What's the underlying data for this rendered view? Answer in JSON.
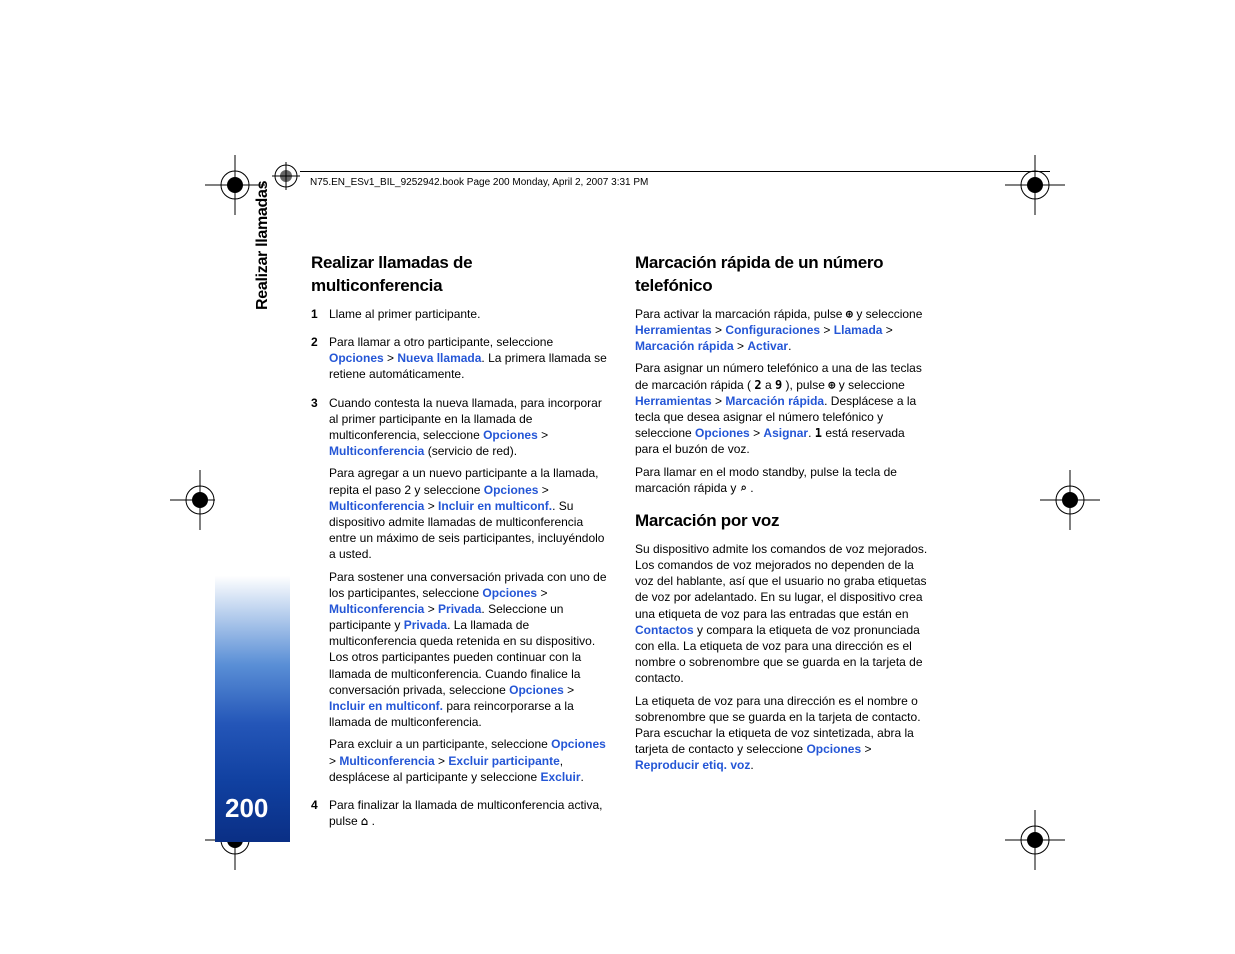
{
  "header": {
    "text": "N75.EN_ESv1_BIL_9252942.book  Page 200  Monday, April 2, 2007  3:31 PM"
  },
  "side": {
    "label": "Realizar llamadas",
    "page_number": "200"
  },
  "colors": {
    "link": "#2456d6",
    "tab_gradient_top": "#ffffff",
    "tab_gradient_bottom": "#0a2f85"
  },
  "left_col": {
    "heading": "Realizar llamadas de multiconferencia",
    "items": [
      {
        "num": "1",
        "paras": [
          [
            {
              "t": "Llame al primer participante."
            }
          ]
        ]
      },
      {
        "num": "2",
        "paras": [
          [
            {
              "t": "Para llamar a otro participante, seleccione "
            },
            {
              "t": "Opciones",
              "link": true
            },
            {
              "t": " > "
            },
            {
              "t": "Nueva llamada",
              "link": true
            },
            {
              "t": ". La primera llamada se retiene automáticamente."
            }
          ]
        ]
      },
      {
        "num": "3",
        "paras": [
          [
            {
              "t": "Cuando contesta la nueva llamada, para incorporar al primer participante en la llamada de multiconferencia, seleccione "
            },
            {
              "t": "Opciones",
              "link": true
            },
            {
              "t": " > "
            },
            {
              "t": "Multiconferencia",
              "link": true
            },
            {
              "t": " (servicio de red)."
            }
          ],
          [
            {
              "t": "Para agregar a un nuevo participante a la llamada, repita el paso 2 y seleccione "
            },
            {
              "t": "Opciones",
              "link": true
            },
            {
              "t": " > "
            },
            {
              "t": "Multiconferencia",
              "link": true
            },
            {
              "t": " > "
            },
            {
              "t": "Incluir en multiconf.",
              "link": true
            },
            {
              "t": ". Su dispositivo admite llamadas de multiconferencia entre un máximo de seis participantes, incluyéndolo a usted."
            }
          ],
          [
            {
              "t": "Para sostener una conversación privada con uno de los participantes, seleccione "
            },
            {
              "t": "Opciones",
              "link": true
            },
            {
              "t": " > "
            },
            {
              "t": "Multiconferencia",
              "link": true
            },
            {
              "t": " > "
            },
            {
              "t": "Privada",
              "link": true
            },
            {
              "t": ". Seleccione un participante y "
            },
            {
              "t": "Privada",
              "link": true
            },
            {
              "t": ". La llamada de multiconferencia queda retenida en su dispositivo. Los otros participantes pueden continuar con la llamada de multiconferencia. Cuando finalice la conversación privada, seleccione "
            },
            {
              "t": "Opciones",
              "link": true
            },
            {
              "t": " > "
            },
            {
              "t": "Incluir en multiconf.",
              "link": true
            },
            {
              "t": " para reincorporarse a la llamada de multiconferencia."
            }
          ],
          [
            {
              "t": "Para excluir a un participante, seleccione "
            },
            {
              "t": "Opciones",
              "link": true
            },
            {
              "t": " > "
            },
            {
              "t": "Multiconferencia",
              "link": true
            },
            {
              "t": " > "
            },
            {
              "t": "Excluir participante",
              "link": true
            },
            {
              "t": ", desplácese al participante y seleccione "
            },
            {
              "t": "Excluir",
              "link": true
            },
            {
              "t": "."
            }
          ]
        ]
      },
      {
        "num": "4",
        "paras": [
          [
            {
              "t": "Para finalizar la llamada de multiconferencia activa, pulse "
            },
            {
              "t": "⌂",
              "key": true
            },
            {
              "t": " ."
            }
          ]
        ]
      }
    ]
  },
  "right_col": {
    "heading1": "Marcación rápida de un número telefónico",
    "paras1": [
      [
        {
          "t": "Para activar la marcación rápida, pulse "
        },
        {
          "t": "⊕",
          "key": true
        },
        {
          "t": " y seleccione "
        },
        {
          "t": "Herramientas",
          "link": true
        },
        {
          "t": " > "
        },
        {
          "t": "Configuraciones",
          "link": true
        },
        {
          "t": " > "
        },
        {
          "t": "Llamada",
          "link": true
        },
        {
          "t": " > "
        },
        {
          "t": "Marcación rápida",
          "link": true
        },
        {
          "t": " > "
        },
        {
          "t": "Activar",
          "link": true
        },
        {
          "t": "."
        }
      ],
      [
        {
          "t": "Para asignar un número telefónico a una de las teclas de marcación rápida ( "
        },
        {
          "t": "2",
          "key": true
        },
        {
          "t": "  a  "
        },
        {
          "t": "9",
          "key": true
        },
        {
          "t": " ), pulse "
        },
        {
          "t": "⊕",
          "key": true
        },
        {
          "t": " y seleccione "
        },
        {
          "t": "Herramientas",
          "link": true
        },
        {
          "t": " > "
        },
        {
          "t": "Marcación rápida",
          "link": true
        },
        {
          "t": ". Desplácese a la tecla que desea asignar el número telefónico y seleccione "
        },
        {
          "t": "Opciones",
          "link": true
        },
        {
          "t": " > "
        },
        {
          "t": "Asignar",
          "link": true
        },
        {
          "t": ".  "
        },
        {
          "t": "1",
          "key": true
        },
        {
          "t": "  está reservada para el buzón de voz."
        }
      ],
      [
        {
          "t": "Para llamar en el modo standby, pulse la tecla de marcación rápida y "
        },
        {
          "t": "⌕",
          "key": true
        },
        {
          "t": " ."
        }
      ]
    ],
    "heading2": "Marcación por voz",
    "paras2": [
      [
        {
          "t": "Su dispositivo admite los comandos de voz mejorados. Los comandos de voz mejorados no dependen de la voz del hablante, así que el usuario no graba etiquetas de voz por adelantado. En su lugar, el dispositivo crea una etiqueta de voz para las entradas que están en "
        },
        {
          "t": "Contactos",
          "link": true
        },
        {
          "t": " y compara la etiqueta de voz pronunciada con ella. La etiqueta de voz para una dirección es el nombre o sobrenombre que se guarda en la tarjeta de contacto."
        }
      ],
      [
        {
          "t": "La etiqueta de voz para una dirección es el nombre o sobrenombre que se guarda en la tarjeta de contacto. Para escuchar la etiqueta de voz sintetizada, abra la tarjeta de contacto y seleccione "
        },
        {
          "t": "Opciones",
          "link": true
        },
        {
          "t": " > "
        },
        {
          "t": "Reproducir etiq. voz",
          "link": true
        },
        {
          "t": "."
        }
      ]
    ]
  }
}
